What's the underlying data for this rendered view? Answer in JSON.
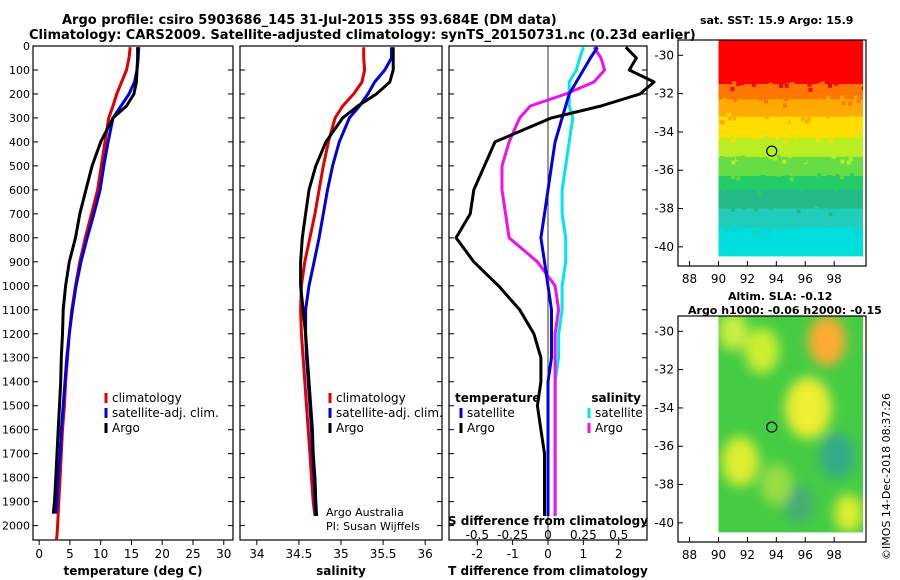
{
  "header": {
    "line1": "Argo profile: csiro 5903686_145 31-Jul-2015 35S 93.684E (DM data)",
    "line2": "Climatology: CARS2009. Satellite-adjusted climatology: synTS_20150731.nc (0.23d earlier)"
  },
  "colors": {
    "climatology": "#e00000",
    "satellite": "#0000dd",
    "argo": "#000000",
    "sal_satellite": "#00e5ee",
    "sal_argo": "#ee11ee"
  },
  "depth_axis": {
    "ticks": [
      0,
      100,
      200,
      300,
      400,
      500,
      600,
      700,
      800,
      900,
      1000,
      1100,
      1200,
      1300,
      1400,
      1500,
      1600,
      1700,
      1800,
      1900,
      2000
    ],
    "range": [
      0,
      2060
    ]
  },
  "chart_data": [
    {
      "type": "line",
      "id": "temperature",
      "xlabel": "temperature (deg C)",
      "xlim": [
        -1,
        31.5
      ],
      "xticks": [
        0,
        5,
        10,
        15,
        20,
        25,
        30
      ],
      "legend": [
        "climatology",
        "satellite-adj. clim.",
        "Argo"
      ],
      "series": [
        {
          "name": "climatology",
          "x": [
            14.8,
            14.6,
            14.2,
            13.4,
            12.6,
            12.0,
            11.3,
            10.7,
            10.1,
            9.5,
            8.5,
            7.5,
            6.6,
            5.9,
            5.3,
            4.9,
            4.6,
            4.3,
            4.1,
            3.8,
            3.6,
            3.4,
            3.2,
            3.0,
            2.9,
            2.8
          ],
          "depth": [
            5,
            50,
            100,
            150,
            200,
            250,
            300,
            400,
            500,
            600,
            700,
            800,
            900,
            1000,
            1100,
            1200,
            1300,
            1400,
            1500,
            1600,
            1700,
            1800,
            1900,
            2000,
            2040,
            2060
          ]
        },
        {
          "name": "satellite-adj. clim.",
          "x": [
            16.2,
            16.1,
            15.9,
            15.5,
            14.6,
            13.3,
            12.0,
            11.2,
            10.5,
            9.9,
            8.9,
            7.8,
            6.8,
            6.0,
            5.4,
            4.9,
            4.5,
            4.2,
            3.9,
            3.6,
            3.4,
            3.1,
            2.9,
            2.7
          ],
          "depth": [
            5,
            50,
            100,
            150,
            200,
            250,
            300,
            400,
            500,
            600,
            700,
            800,
            900,
            1000,
            1100,
            1200,
            1300,
            1400,
            1500,
            1600,
            1700,
            1800,
            1900,
            1950
          ]
        },
        {
          "name": "Argo",
          "x": [
            16.0,
            16.0,
            15.9,
            15.8,
            15.4,
            14.2,
            12.0,
            10.0,
            8.6,
            7.6,
            6.6,
            5.9,
            4.9,
            4.3,
            3.9,
            3.8,
            3.6,
            3.5,
            3.3,
            3.1,
            2.9,
            2.7,
            2.5,
            2.3
          ],
          "depth": [
            5,
            50,
            100,
            150,
            200,
            250,
            300,
            400,
            500,
            600,
            700,
            800,
            900,
            1000,
            1100,
            1200,
            1300,
            1400,
            1500,
            1600,
            1700,
            1800,
            1900,
            1950
          ]
        }
      ]
    },
    {
      "type": "line",
      "id": "salinity",
      "xlabel": "salinity",
      "xlim": [
        33.8,
        36.2
      ],
      "xticks": [
        34,
        34.5,
        35,
        35.5,
        36
      ],
      "legend": [
        "climatology",
        "satellite-adj. clim.",
        "Argo"
      ],
      "series": [
        {
          "name": "climatology",
          "x": [
            35.27,
            35.27,
            35.28,
            35.25,
            35.15,
            35.02,
            34.93,
            34.85,
            34.79,
            34.74,
            34.69,
            34.63,
            34.57,
            34.53,
            34.52,
            34.53,
            34.55,
            34.57,
            34.59,
            34.61,
            34.63,
            34.65,
            34.67,
            34.69
          ],
          "depth": [
            5,
            50,
            100,
            150,
            200,
            250,
            300,
            400,
            500,
            600,
            700,
            800,
            900,
            1000,
            1100,
            1200,
            1300,
            1400,
            1500,
            1600,
            1700,
            1800,
            1900,
            1960
          ]
        },
        {
          "name": "satellite-adj. clim.",
          "x": [
            35.6,
            35.6,
            35.52,
            35.4,
            35.32,
            35.22,
            35.1,
            34.98,
            34.9,
            34.84,
            34.79,
            34.74,
            34.68,
            34.62,
            34.58,
            34.58,
            34.59,
            34.61,
            34.63,
            34.65,
            34.66,
            34.68,
            34.69,
            34.7
          ],
          "depth": [
            5,
            50,
            100,
            150,
            200,
            250,
            300,
            400,
            500,
            600,
            700,
            800,
            900,
            1000,
            1100,
            1200,
            1300,
            1400,
            1500,
            1600,
            1700,
            1800,
            1900,
            1960
          ]
        },
        {
          "name": "Argo",
          "x": [
            35.62,
            35.62,
            35.62,
            35.58,
            35.42,
            35.2,
            35.02,
            34.82,
            34.7,
            34.62,
            34.58,
            34.54,
            34.52,
            34.52,
            34.55,
            34.58,
            34.6,
            34.62,
            34.64,
            34.66,
            34.67,
            34.69,
            34.7,
            34.71
          ],
          "depth": [
            5,
            50,
            100,
            150,
            200,
            250,
            300,
            400,
            500,
            600,
            700,
            800,
            900,
            1000,
            1100,
            1200,
            1300,
            1400,
            1500,
            1600,
            1700,
            1800,
            1900,
            1960
          ]
        }
      ],
      "credits": [
        "Argo Australia",
        "PI: Susan Wijffels"
      ]
    },
    {
      "type": "line",
      "id": "difference",
      "xlabel": "T difference from climatology",
      "xlim": [
        -2.8,
        2.8
      ],
      "xticks": [
        -2,
        -1,
        0,
        1,
        2
      ],
      "top_xlabel": "S difference from climatology",
      "top_ticks": [
        "-0.5",
        "-0.25",
        "0",
        "0.25",
        "0.5"
      ],
      "top_tick_values": [
        -0.5,
        -0.25,
        0,
        0.25,
        0.5
      ],
      "s_scale": 4,
      "legend_groups": {
        "temperature": "temperature",
        "salinity": "salinity",
        "satellite": "satellite",
        "argo": "Argo"
      },
      "series": [
        {
          "name": "T satellite",
          "x": [
            1.4,
            1.2,
            1.0,
            0.8,
            0.6,
            0.5,
            0.4,
            0.2,
            0.1,
            0.0,
            -0.1,
            -0.2,
            -0.1,
            0.0,
            0.1,
            0.1,
            0.1,
            0.0,
            0.0,
            0.0,
            0.0,
            0.0,
            0.0,
            0.0
          ],
          "depth": [
            5,
            50,
            100,
            150,
            200,
            250,
            300,
            400,
            500,
            600,
            700,
            800,
            900,
            1000,
            1100,
            1200,
            1300,
            1400,
            1500,
            1600,
            1700,
            1800,
            1900,
            1960
          ]
        },
        {
          "name": "T Argo",
          "x": [
            2.2,
            2.5,
            2.3,
            3.0,
            2.6,
            1.5,
            0.1,
            -1.5,
            -1.8,
            -2.1,
            -2.2,
            -2.6,
            -2.1,
            -1.4,
            -0.8,
            -0.4,
            -0.2,
            -0.2,
            -0.3,
            -0.2,
            -0.1,
            -0.1,
            -0.1,
            -0.1
          ],
          "depth": [
            5,
            50,
            100,
            150,
            200,
            250,
            300,
            400,
            500,
            600,
            700,
            800,
            900,
            1000,
            1100,
            1200,
            1300,
            1400,
            1500,
            1600,
            1700,
            1800,
            1900,
            1960
          ]
        },
        {
          "name": "S satellite",
          "x": [
            1.0,
            0.9,
            0.8,
            0.6,
            0.6,
            0.6,
            0.7,
            0.6,
            0.5,
            0.4,
            0.4,
            0.5,
            0.5,
            0.4,
            0.4,
            0.3,
            0.3,
            0.2,
            0.2,
            0.2,
            0.2,
            0.2,
            0.2,
            0.2
          ],
          "depth": [
            5,
            50,
            100,
            150,
            200,
            250,
            300,
            400,
            500,
            600,
            700,
            800,
            900,
            1000,
            1100,
            1200,
            1300,
            1400,
            1500,
            1600,
            1700,
            1800,
            1900,
            1960
          ]
        },
        {
          "name": "S Argo",
          "x": [
            1.3,
            1.5,
            1.6,
            1.3,
            0.5,
            -0.5,
            -0.8,
            -1.1,
            -1.3,
            -1.3,
            -1.2,
            -1.1,
            -0.3,
            0.2,
            0.3,
            0.2,
            0.2,
            0.2,
            0.2,
            0.2,
            0.2,
            0.2,
            0.2,
            0.2
          ],
          "depth": [
            5,
            50,
            100,
            150,
            200,
            250,
            300,
            400,
            500,
            600,
            700,
            800,
            900,
            1000,
            1100,
            1200,
            1300,
            1400,
            1500,
            1600,
            1700,
            1800,
            1900,
            1960
          ]
        }
      ]
    },
    {
      "type": "heatmap",
      "id": "sst-map",
      "title": "sat. SST: 15.9 Argo: 15.9",
      "xticks": [
        88,
        90,
        92,
        94,
        96,
        98
      ],
      "yticks": [
        -30,
        -32,
        -34,
        -36,
        -38,
        -40
      ],
      "lon_range": [
        87.2,
        100.2
      ],
      "lat_range": [
        -41,
        -29.2
      ],
      "data_lon_range": [
        90,
        100
      ],
      "data_lat_range": [
        -40.5,
        -29.2
      ],
      "argo_position": {
        "lon": 93.684,
        "lat": -35
      },
      "bands": [
        {
          "lat": -29.2,
          "color": "#ff0000"
        },
        {
          "lat": -31.5,
          "color": "#ff7700"
        },
        {
          "lat": -32.3,
          "color": "#ffaa00"
        },
        {
          "lat": -33.2,
          "color": "#ffdd00"
        },
        {
          "lat": -34.3,
          "color": "#bbee22"
        },
        {
          "lat": -35.3,
          "color": "#66dd44"
        },
        {
          "lat": -36.3,
          "color": "#22cc66"
        },
        {
          "lat": -37.0,
          "color": "#22bb88"
        },
        {
          "lat": -38.0,
          "color": "#22ccbb"
        },
        {
          "lat": -39.0,
          "color": "#00dddd"
        },
        {
          "lat": -40.5,
          "color": null
        }
      ]
    },
    {
      "type": "heatmap",
      "id": "sla-map",
      "title_line1": "Altim. SLA: -0.12",
      "title_line2": "Argo h1000: -0.06 h2000: -0.15",
      "xticks": [
        88,
        90,
        92,
        94,
        96,
        98
      ],
      "yticks": [
        -30,
        -32,
        -34,
        -36,
        -38,
        -40
      ],
      "lon_range": [
        87.2,
        100.2
      ],
      "lat_range": [
        -41,
        -29.2
      ],
      "data_lon_range": [
        90,
        100
      ],
      "data_lat_range": [
        -40.5,
        -29.2
      ],
      "argo_position": {
        "lon": 93.684,
        "lat": -35
      },
      "base_color": "#44cc44",
      "blobs": [
        {
          "lon": 97.5,
          "lat": -30.5,
          "r": 1.3,
          "color": "#ffaa33"
        },
        {
          "lon": 96.2,
          "lat": -34.0,
          "r": 1.6,
          "color": "#eeee33"
        },
        {
          "lon": 91.5,
          "lat": -36.8,
          "r": 1.3,
          "color": "#ddee33"
        },
        {
          "lon": 93.0,
          "lat": -31.0,
          "r": 1.2,
          "color": "#ccee33"
        },
        {
          "lon": 91.0,
          "lat": -30.0,
          "r": 1.0,
          "color": "#ccee44"
        },
        {
          "lon": 98.2,
          "lat": -36.5,
          "r": 1.2,
          "color": "#33aa88"
        },
        {
          "lon": 95.5,
          "lat": -39.0,
          "r": 1.0,
          "color": "#44aa77"
        },
        {
          "lon": 99.0,
          "lat": -39.5,
          "r": 1.0,
          "color": "#ddee33"
        },
        {
          "lon": 94.0,
          "lat": -38.0,
          "r": 1.1,
          "color": "#99dd44"
        }
      ]
    }
  ],
  "stamp": "©IMOS 14-Dec-2018 08:37:26"
}
